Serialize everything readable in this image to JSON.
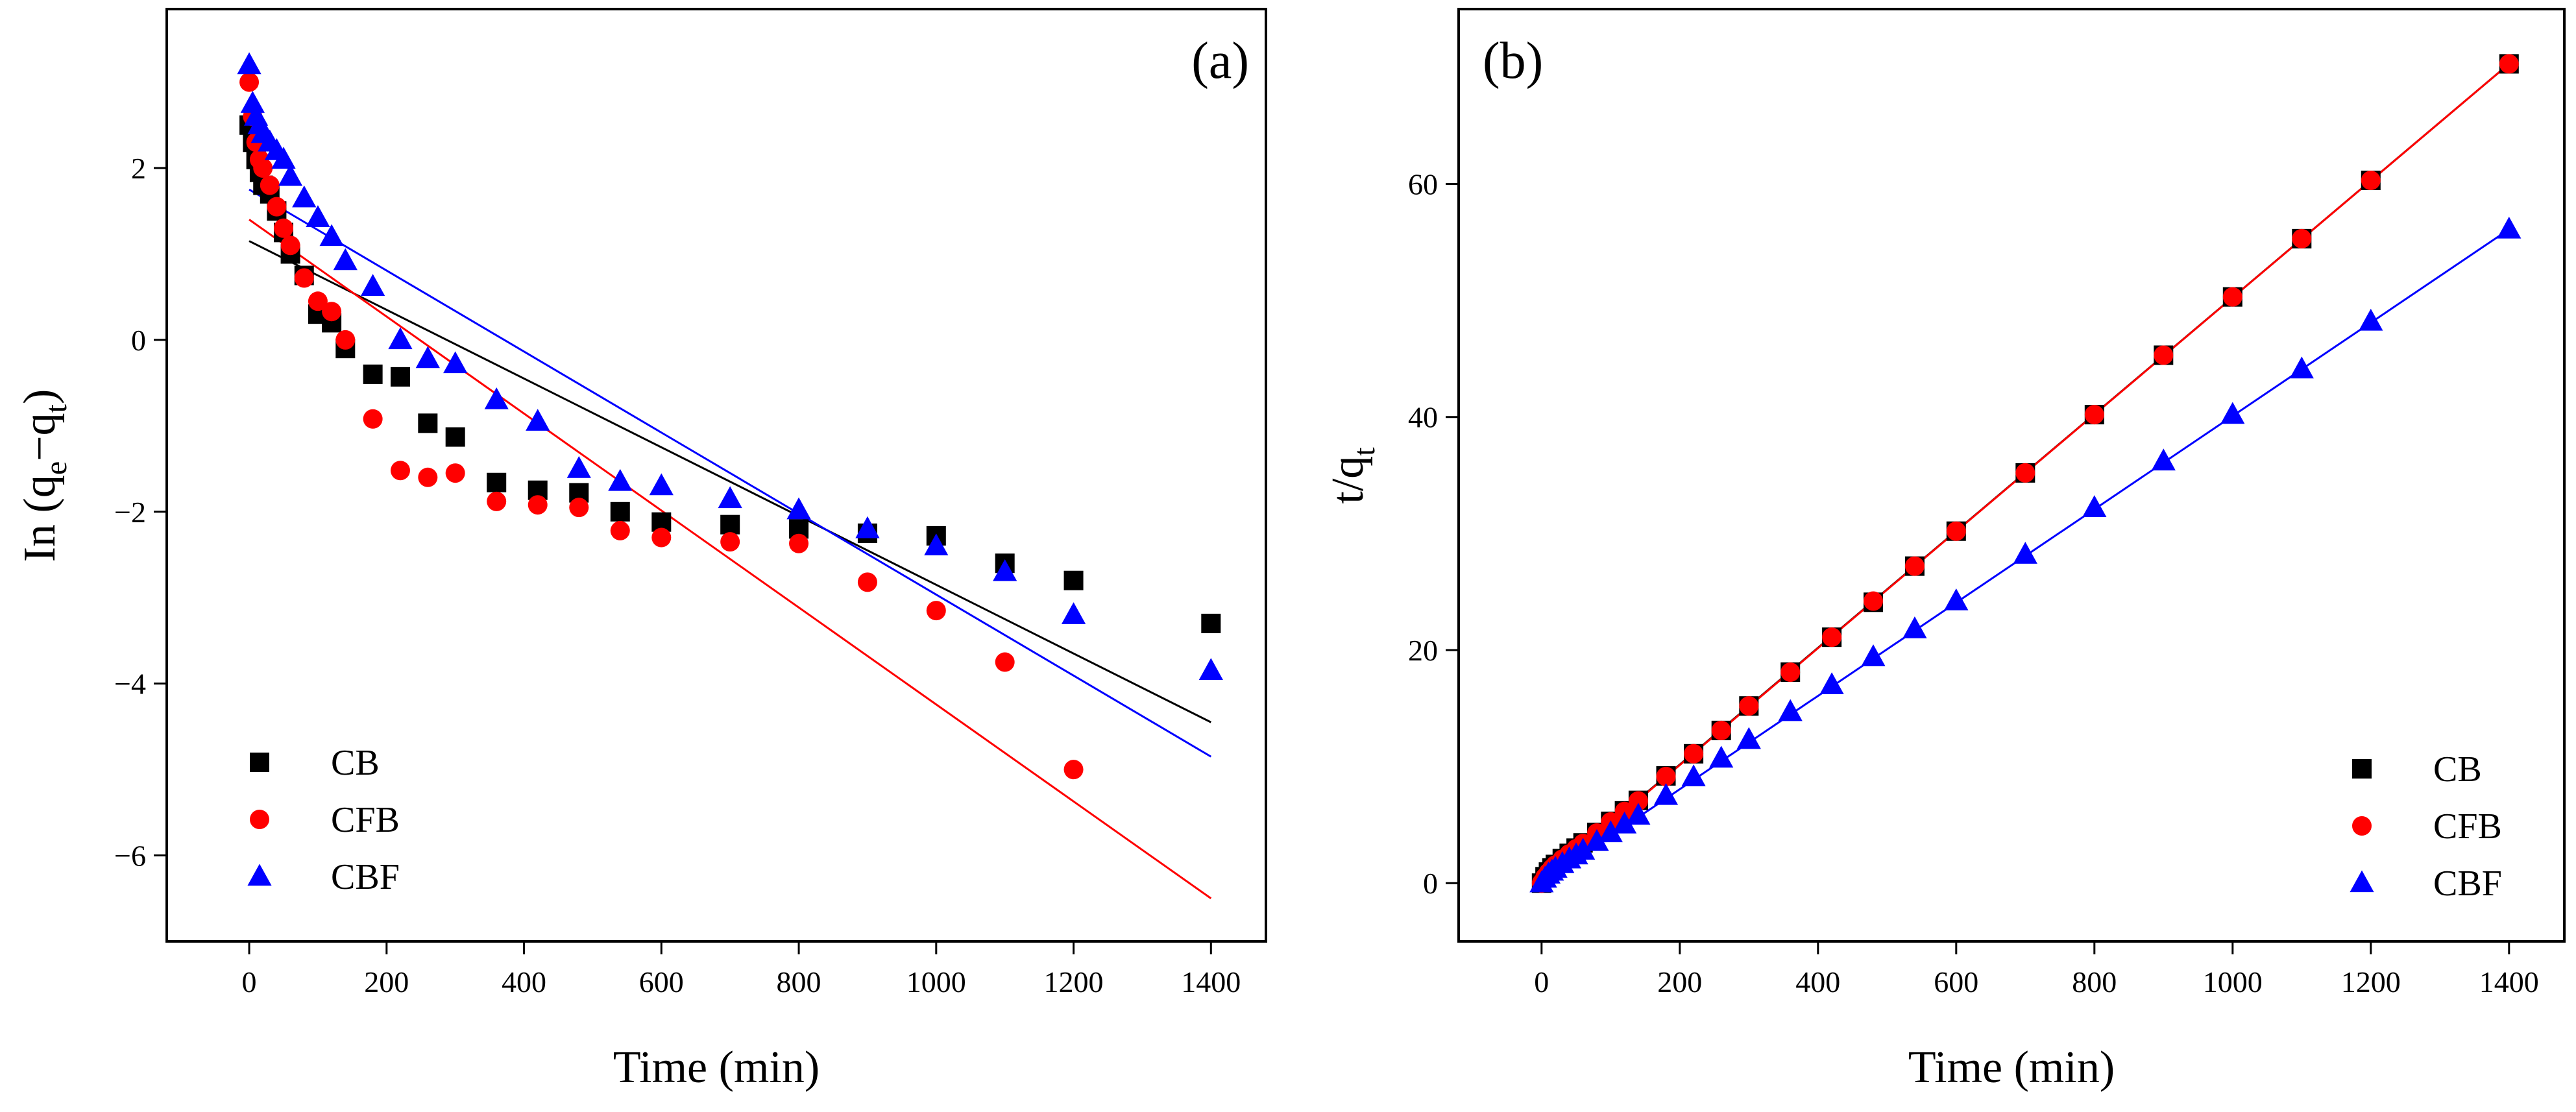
{
  "chart_data": [
    {
      "panel_label": "(a)",
      "type": "scatter",
      "xlabel": "Time (min)",
      "ylabel": {
        "base": "In (q",
        "sub1": "e",
        "mid": "−q",
        "sub2": "t",
        "end": ")"
      },
      "xlim": [
        -120,
        1480
      ],
      "ylim": [
        -7.0,
        3.85
      ],
      "xticks": [
        0,
        200,
        400,
        600,
        800,
        1000,
        1200,
        1400
      ],
      "xtick_labels": [
        "0",
        "200",
        "400",
        "600",
        "800",
        "1000",
        "1200",
        "1400"
      ],
      "yticks": [
        -6,
        -4,
        -2,
        0,
        2
      ],
      "ytick_labels": [
        "−6",
        "−4",
        "−2",
        "0",
        "2"
      ],
      "legend_position": "bottom-left",
      "series": [
        {
          "name": "CB",
          "marker": "square",
          "color": "#000000",
          "x": [
            0,
            5,
            10,
            15,
            20,
            30,
            40,
            50,
            60,
            80,
            100,
            120,
            140,
            180,
            220,
            260,
            300,
            360,
            420,
            480,
            540,
            600,
            700,
            800,
            900,
            1000,
            1100,
            1200,
            1400
          ],
          "y": [
            2.5,
            2.3,
            2.1,
            1.95,
            1.8,
            1.7,
            1.5,
            1.25,
            1.0,
            0.75,
            0.3,
            0.2,
            -0.1,
            -0.4,
            -0.43,
            -0.97,
            -1.13,
            -1.66,
            -1.75,
            -1.78,
            -2.0,
            -2.12,
            -2.15,
            -2.2,
            -2.25,
            -2.28,
            -2.6,
            -2.8,
            -3.3
          ],
          "fit": [
            [
              0,
              1.15
            ],
            [
              1400,
              -4.45
            ]
          ],
          "fit_color": "#000000"
        },
        {
          "name": "CFB",
          "marker": "circle",
          "color": "#ff0000",
          "x": [
            0,
            5,
            10,
            15,
            20,
            30,
            40,
            50,
            60,
            80,
            100,
            120,
            140,
            180,
            220,
            260,
            300,
            360,
            420,
            480,
            540,
            600,
            700,
            800,
            900,
            1000,
            1100,
            1200
          ],
          "y": [
            3.0,
            2.6,
            2.3,
            2.1,
            2.0,
            1.8,
            1.55,
            1.3,
            1.1,
            0.72,
            0.45,
            0.33,
            0.0,
            -0.92,
            -1.52,
            -1.6,
            -1.55,
            -1.88,
            -1.92,
            -1.95,
            -2.22,
            -2.3,
            -2.35,
            -2.37,
            -2.82,
            -3.15,
            -3.75,
            -5.0
          ],
          "fit": [
            [
              0,
              1.4
            ],
            [
              1400,
              -6.5
            ]
          ],
          "fit_color": "#ff0000"
        },
        {
          "name": "CBF",
          "marker": "triangle",
          "color": "#0000ff",
          "x": [
            0,
            5,
            10,
            15,
            20,
            30,
            40,
            50,
            60,
            80,
            100,
            120,
            140,
            180,
            220,
            260,
            300,
            360,
            420,
            480,
            540,
            600,
            700,
            800,
            900,
            1000,
            1100,
            1200,
            1400
          ],
          "y": [
            3.2,
            2.75,
            2.6,
            2.5,
            2.4,
            2.3,
            2.2,
            2.1,
            1.9,
            1.65,
            1.42,
            1.2,
            0.92,
            0.62,
            0.0,
            -0.22,
            -0.28,
            -0.7,
            -0.95,
            -1.5,
            -1.65,
            -1.7,
            -1.85,
            -1.98,
            -2.2,
            -2.4,
            -2.7,
            -3.2,
            -3.85
          ],
          "fit": [
            [
              0,
              1.75
            ],
            [
              1400,
              -4.85
            ]
          ],
          "fit_color": "#0000ff"
        }
      ]
    },
    {
      "panel_label": "(b)",
      "type": "scatter",
      "xlabel": "Time (min)",
      "ylabel": {
        "base": "t/q",
        "sub1": "t"
      },
      "xlim": [
        -120,
        1480
      ],
      "ylim": [
        -5,
        75
      ],
      "xticks": [
        0,
        200,
        400,
        600,
        800,
        1000,
        1200,
        1400
      ],
      "xtick_labels": [
        "0",
        "200",
        "400",
        "600",
        "800",
        "1000",
        "1200",
        "1400"
      ],
      "yticks": [
        0,
        20,
        40,
        60
      ],
      "ytick_labels": [
        "0",
        "20",
        "40",
        "60"
      ],
      "legend_position": "bottom-right",
      "series": [
        {
          "name": "CB",
          "marker": "square",
          "color": "#000000",
          "x": [
            0,
            5,
            10,
            15,
            20,
            30,
            40,
            50,
            60,
            80,
            100,
            120,
            140,
            180,
            220,
            260,
            300,
            360,
            420,
            480,
            540,
            600,
            700,
            800,
            900,
            1000,
            1100,
            1200,
            1400
          ],
          "y": [
            0.0,
            0.55,
            0.95,
            1.3,
            1.6,
            2.1,
            2.55,
            3.0,
            3.45,
            4.35,
            5.3,
            6.2,
            7.1,
            9.2,
            11.1,
            13.1,
            15.2,
            18.1,
            21.1,
            24.1,
            27.2,
            30.2,
            35.2,
            40.2,
            45.3,
            50.3,
            55.3,
            60.3,
            70.3
          ],
          "fit": [
            [
              0,
              0.15
            ],
            [
              1400,
              70.3
            ]
          ],
          "fit_color": "#000000"
        },
        {
          "name": "CFB",
          "marker": "circle",
          "color": "#ff0000",
          "x": [
            0,
            5,
            10,
            15,
            20,
            30,
            40,
            50,
            60,
            80,
            100,
            120,
            140,
            180,
            220,
            260,
            300,
            360,
            420,
            480,
            540,
            600,
            700,
            800,
            900,
            1000,
            1100,
            1200,
            1400
          ],
          "y": [
            0.0,
            0.5,
            0.9,
            1.25,
            1.55,
            2.05,
            2.5,
            2.95,
            3.4,
            4.3,
            5.25,
            6.15,
            7.05,
            9.15,
            11.1,
            13.1,
            15.2,
            18.1,
            21.1,
            24.2,
            27.2,
            30.2,
            35.2,
            40.2,
            45.3,
            50.3,
            55.3,
            60.3,
            70.3
          ],
          "fit": [
            [
              0,
              0.1
            ],
            [
              1400,
              70.3
            ]
          ],
          "fit_color": "#ff0000"
        },
        {
          "name": "CBF",
          "marker": "triangle",
          "color": "#0000ff",
          "x": [
            0,
            5,
            10,
            15,
            20,
            30,
            40,
            50,
            60,
            80,
            100,
            120,
            140,
            180,
            220,
            260,
            300,
            360,
            420,
            480,
            540,
            600,
            700,
            800,
            900,
            1000,
            1100,
            1200,
            1400
          ],
          "y": [
            0.0,
            0.4,
            0.75,
            1.0,
            1.25,
            1.65,
            2.05,
            2.4,
            2.8,
            3.55,
            4.3,
            5.05,
            5.8,
            7.5,
            9.1,
            10.7,
            12.3,
            14.7,
            17.0,
            19.4,
            21.8,
            24.2,
            28.2,
            32.2,
            36.2,
            40.2,
            44.1,
            48.2,
            56.1
          ],
          "fit": [
            [
              0,
              0.05
            ],
            [
              1400,
              56.1
            ]
          ],
          "fit_color": "#0000ff"
        }
      ]
    }
  ]
}
